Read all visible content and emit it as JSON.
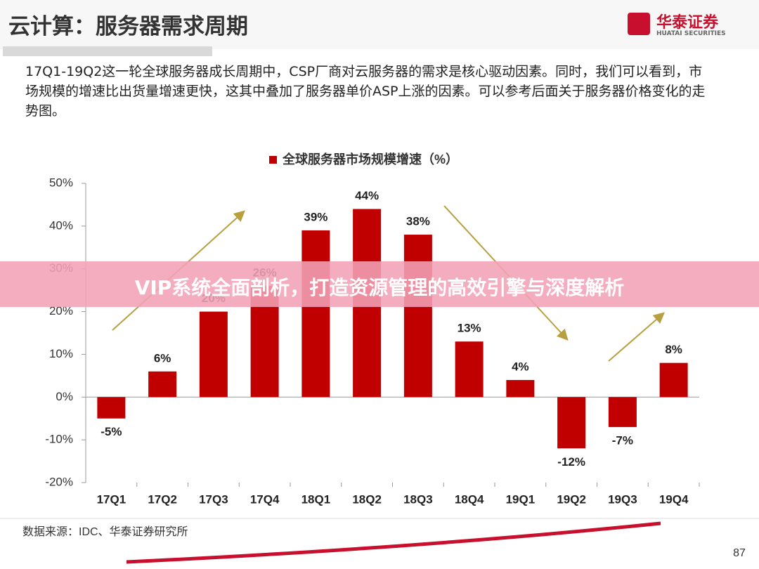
{
  "slide": {
    "title": "云计算：服务器需求周期",
    "logo_cn": "华泰证券",
    "logo_en": "HUATAI SECURITIES",
    "body": "17Q1-19Q2这一轮全球服务器成长周期中，CSP厂商对云服务器的需求是核心驱动因素。同时，我们可以看到，市场规模的增速比出货量增速更快，这其中叠加了服务器单价ASP上涨的因素。可以参考后面关于服务器价格变化的走势图。",
    "banner": "VIP系统全面剖析，打造资源管理的高效引擎与深度解析",
    "source": "数据来源：IDC、华泰证券研究所",
    "page_number": "87"
  },
  "chart_data": {
    "type": "bar",
    "categories": [
      "17Q1",
      "17Q2",
      "17Q3",
      "17Q4",
      "18Q1",
      "18Q2",
      "18Q3",
      "18Q4",
      "19Q1",
      "19Q2",
      "19Q3",
      "19Q4"
    ],
    "series": [
      {
        "name": "全球服务器市场规模增速（%）",
        "color": "#c00000",
        "values": [
          -5,
          6,
          20,
          26,
          39,
          44,
          38,
          13,
          4,
          -12,
          -7,
          8
        ],
        "value_labels": [
          "-5%",
          "6%",
          "20%",
          "26%",
          "39%",
          "44%",
          "38%",
          "13%",
          "4%",
          "-12%",
          "-7%",
          "8%"
        ]
      }
    ],
    "ylim": [
      -20,
      50
    ],
    "yticks": [
      {
        "value": -20,
        "label": "-20%"
      },
      {
        "value": -10,
        "label": "-10%"
      },
      {
        "value": 0,
        "label": "0%"
      },
      {
        "value": 10,
        "label": "10%"
      },
      {
        "value": 20,
        "label": "20%"
      },
      {
        "value": 30,
        "label": "30%"
      },
      {
        "value": 40,
        "label": "40%"
      },
      {
        "value": 50,
        "label": "50%"
      }
    ],
    "legend": "top"
  }
}
